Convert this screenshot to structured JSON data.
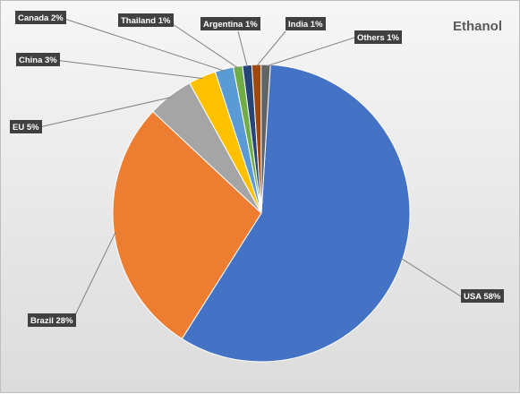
{
  "chart_data": {
    "type": "pie",
    "title": "Ethanol",
    "categories": [
      "USA",
      "Brazil",
      "EU",
      "China",
      "Canada",
      "Thailand",
      "Argentina",
      "India",
      "Others"
    ],
    "values": [
      58,
      28,
      5,
      3,
      2,
      1,
      1,
      1,
      1
    ],
    "labels": [
      "USA 58%",
      "Brazil 28%",
      "EU 5%",
      "China 3%",
      "Canada 2%",
      "Thailand 1%",
      "Argentina 1%",
      "India 1%",
      "Others 1%"
    ],
    "unit": "%",
    "colors": [
      "#4472c4",
      "#ed7d31",
      "#a5a5a5",
      "#ffc000",
      "#5b9bd5",
      "#70ad47",
      "#264478",
      "#9e480e",
      "#636363"
    ],
    "legend": "none"
  }
}
